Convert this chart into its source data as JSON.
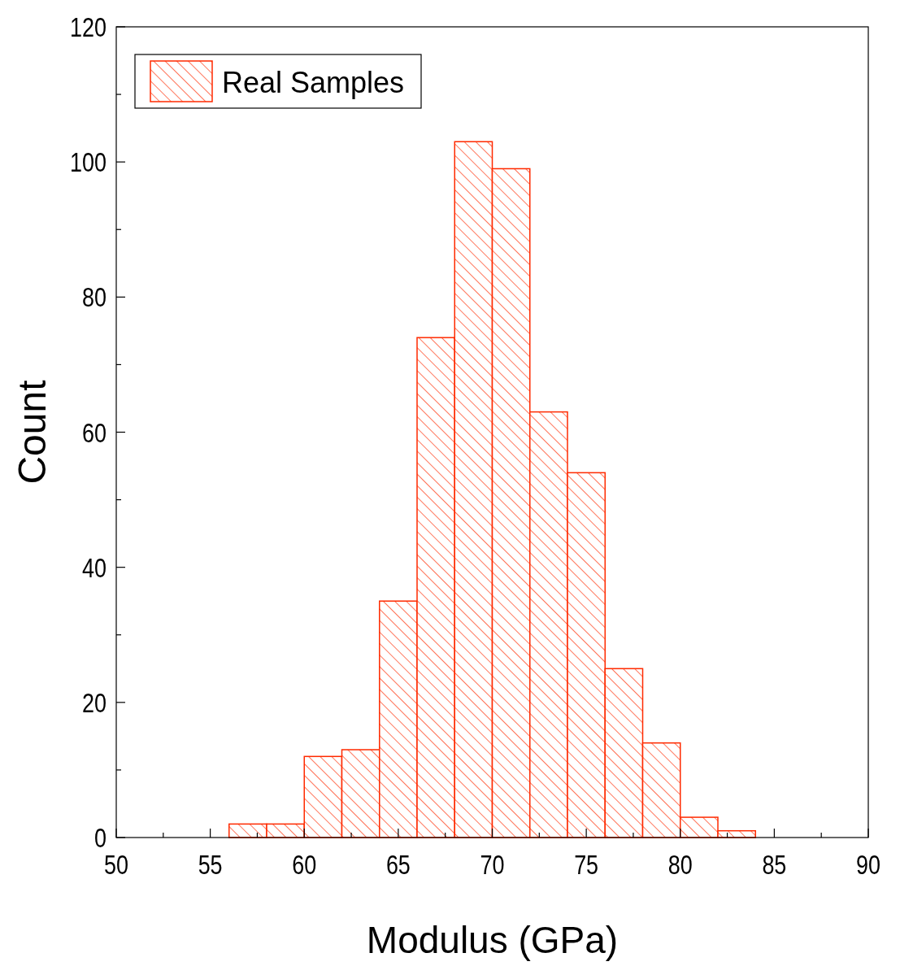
{
  "chart_data": {
    "type": "histogram",
    "xlabel": "Modulus (GPa)",
    "ylabel": "Count",
    "bins": [
      56,
      58,
      60,
      62,
      64,
      66,
      68,
      70,
      72,
      74,
      76,
      78,
      80,
      82,
      84
    ],
    "series": [
      {
        "name": "Real Samples",
        "color": "#ff2a00",
        "values": [
          2,
          2,
          12,
          13,
          35,
          74,
          103,
          99,
          63,
          54,
          25,
          14,
          3,
          1
        ]
      }
    ],
    "xlim": [
      50,
      90
    ],
    "xticks": [
      50,
      {
        "value": 52.5,
        "label": null
      },
      55,
      {
        "value": 57.5,
        "label": null
      },
      60,
      {
        "value": 62.5,
        "label": null
      },
      65,
      {
        "value": 67.5,
        "label": null
      },
      70,
      {
        "value": 72.5,
        "label": null
      },
      75,
      {
        "value": 77.5,
        "label": null
      },
      80,
      {
        "value": 82.5,
        "label": null
      },
      85,
      {
        "value": 87.5,
        "label": null
      },
      90
    ],
    "ylim": [
      0,
      120
    ],
    "yticks": [
      0,
      {
        "value": 10,
        "label": null
      },
      20,
      {
        "value": 30,
        "label": null
      },
      40,
      {
        "value": 50,
        "label": null
      },
      60,
      {
        "value": 70,
        "label": null
      },
      80,
      {
        "value": 90,
        "label": null
      },
      100,
      {
        "value": 110,
        "label": null
      },
      120
    ],
    "legend": "top left",
    "grid": false
  }
}
